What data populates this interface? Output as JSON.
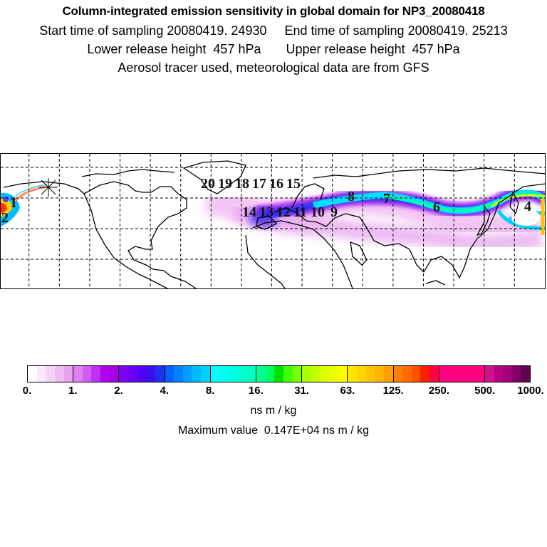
{
  "header": {
    "title": "Column-integrated emission sensitivity in global domain for NP3_20080418",
    "sampling_line": "Start time of sampling 20080419. 24930     End time of sampling 20080419. 25213",
    "release_line": "Lower release height  457 hPa       Upper release height  457 hPa",
    "tracer_line": "Aerosol tracer used, meteorological data are from GFS"
  },
  "map": {
    "release_marker_icon": "asterisk-release-point",
    "trajectory_labels": [
      "1",
      "2",
      "4",
      "6",
      "7",
      "8",
      "9",
      "10",
      "11",
      "12",
      "13",
      "14",
      "15",
      "16",
      "17",
      "18",
      "19",
      "20"
    ]
  },
  "colorbar": {
    "ticks": [
      "0.",
      "1.",
      "2.",
      "4.",
      "8.",
      "16.",
      "31.",
      "63.",
      "125.",
      "250.",
      "500.",
      "1000."
    ],
    "units": "ns m / kg",
    "colors": [
      [
        "#ffffff",
        "#fce8fc",
        "#f7d2f7",
        "#f0baf2",
        "#e8a2ee"
      ],
      [
        "#e07ef2",
        "#d05cf2",
        "#c030f2",
        "#b400f0",
        "#a400e8"
      ],
      [
        "#8000f2",
        "#6a00f8",
        "#5200f8",
        "#3a10f0",
        "#2030f0"
      ],
      [
        "#0064ff",
        "#0082ff",
        "#00a0ff",
        "#00baff",
        "#00d2ff"
      ],
      [
        "#00ffff",
        "#00fff2",
        "#00ffe2",
        "#00ffd2",
        "#00ffc2"
      ],
      [
        "#00ff90",
        "#00ff60",
        "#00e000",
        "#40ff00",
        "#78ff00"
      ],
      [
        "#a8ff00",
        "#c4ff00",
        "#dcff00",
        "#ecff00",
        "#ffff00"
      ],
      [
        "#ffe400",
        "#ffd400",
        "#ffc400",
        "#ffb400",
        "#ffa000"
      ],
      [
        "#ff8000",
        "#ff6c00",
        "#ff5000",
        "#ff2000",
        "#ff0040"
      ],
      [
        "#ff0080",
        "#ff0080",
        "#ff0080",
        "#ff0080",
        "#ff0080"
      ],
      [
        "#d0108f",
        "#b80086",
        "#a00078",
        "#840066",
        "#600050"
      ]
    ]
  },
  "max_value_text": "Maximum value  0.147E+04 ns m / kg"
}
